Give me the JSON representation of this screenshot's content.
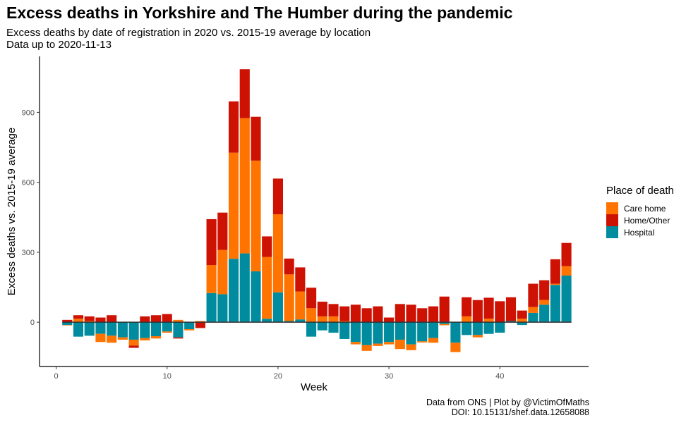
{
  "title": "Excess deaths in Yorkshire and The Humber during the pandemic",
  "subtitle_line1": "Excess deaths by date of registration in 2020 vs. 2015-19 average by location",
  "subtitle_line2": "Data up to 2020-11-13",
  "caption_line1": "Data from ONS | Plot by @VictimOfMaths",
  "caption_line2": "DOI: 10.15131/shef.data.12658088",
  "legend": {
    "title": "Place of death",
    "items": [
      {
        "label": "Care home",
        "color": "#FF7400"
      },
      {
        "label": "Home/Other",
        "color": "#CD1204"
      },
      {
        "label": "Hospital",
        "color": "#008C9E"
      }
    ]
  },
  "chart_data": {
    "type": "bar",
    "stacked": true,
    "xlabel": "Week",
    "ylabel": "Excess deaths vs. 2015-19 average",
    "xlim": [
      -1.5,
      48
    ],
    "ylim": [
      -190,
      1140
    ],
    "xticks": [
      0,
      10,
      20,
      30,
      40
    ],
    "yticks": [
      0,
      300,
      600,
      900
    ],
    "grid": false,
    "legend_position": "right",
    "weeks": [
      1,
      2,
      3,
      4,
      5,
      6,
      7,
      8,
      9,
      10,
      11,
      12,
      13,
      14,
      15,
      16,
      17,
      18,
      19,
      20,
      21,
      22,
      23,
      24,
      25,
      26,
      27,
      28,
      29,
      30,
      31,
      32,
      33,
      34,
      35,
      36,
      37,
      38,
      39,
      40,
      41,
      42,
      43,
      44,
      45,
      46
    ],
    "series": [
      {
        "name": "Hospital",
        "color": "#008C9E",
        "values": [
          -12,
          -62,
          -58,
          -50,
          -58,
          -65,
          -75,
          -68,
          -60,
          -40,
          -65,
          -30,
          0,
          125,
          120,
          272,
          295,
          218,
          15,
          128,
          5,
          12,
          -62,
          -35,
          -45,
          -72,
          -85,
          -98,
          -92,
          -85,
          -75,
          -95,
          -82,
          -68,
          -8,
          -88,
          -55,
          -55,
          -50,
          -45,
          5,
          -12,
          40,
          75,
          160,
          200
        ]
      },
      {
        "name": "Care home",
        "color": "#FF7400",
        "values": [
          -2,
          15,
          5,
          -35,
          -30,
          -10,
          -25,
          -10,
          -10,
          -5,
          10,
          -5,
          5,
          120,
          190,
          455,
          580,
          475,
          265,
          335,
          200,
          120,
          60,
          25,
          25,
          5,
          -10,
          -25,
          -10,
          -10,
          -40,
          -25,
          -5,
          -20,
          -5,
          -40,
          25,
          -10,
          15,
          0,
          0,
          15,
          25,
          20,
          5,
          40
        ]
      },
      {
        "name": "Home/Other",
        "color": "#CD1204",
        "values": [
          10,
          15,
          20,
          20,
          30,
          0,
          -10,
          25,
          30,
          35,
          -5,
          0,
          -25,
          197,
          160,
          220,
          210,
          188,
          88,
          153,
          68,
          103,
          88,
          63,
          53,
          63,
          75,
          60,
          68,
          20,
          78,
          75,
          60,
          68,
          110,
          0,
          82,
          95,
          90,
          90,
          102,
          35,
          100,
          85,
          105,
          100
        ]
      }
    ]
  }
}
